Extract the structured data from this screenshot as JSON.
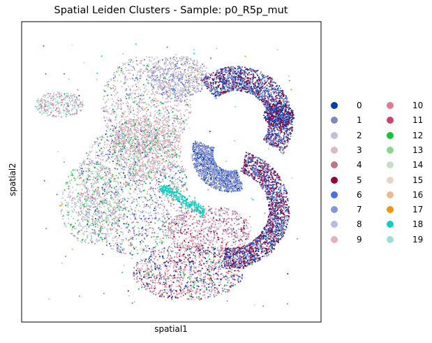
{
  "chart_data": {
    "type": "scatter",
    "title": "Spatial Leiden Clusters - Sample: p0_R5p_mut",
    "xlabel": "spatial1",
    "ylabel": "spatial2",
    "grid": false,
    "ticks": false,
    "legend_placement": "right",
    "legend_columns": 2,
    "series": [
      {
        "name": "0",
        "color": "#023fa5"
      },
      {
        "name": "1",
        "color": "#7d87b9"
      },
      {
        "name": "2",
        "color": "#bec1d4"
      },
      {
        "name": "3",
        "color": "#d6bcc0"
      },
      {
        "name": "4",
        "color": "#bb7784"
      },
      {
        "name": "5",
        "color": "#8e063b"
      },
      {
        "name": "6",
        "color": "#4a6fe3"
      },
      {
        "name": "7",
        "color": "#8595e1"
      },
      {
        "name": "8",
        "color": "#b5bbe3"
      },
      {
        "name": "9",
        "color": "#e6afb9"
      },
      {
        "name": "10",
        "color": "#e07b91"
      },
      {
        "name": "11",
        "color": "#d33f6a"
      },
      {
        "name": "12",
        "color": "#11c638"
      },
      {
        "name": "13",
        "color": "#8dd593"
      },
      {
        "name": "14",
        "color": "#c6dec7"
      },
      {
        "name": "15",
        "color": "#ead3c6"
      },
      {
        "name": "16",
        "color": "#f0b98d"
      },
      {
        "name": "17",
        "color": "#ef9708"
      },
      {
        "name": "18",
        "color": "#0fcfc0"
      },
      {
        "name": "19",
        "color": "#9cded6"
      }
    ]
  }
}
